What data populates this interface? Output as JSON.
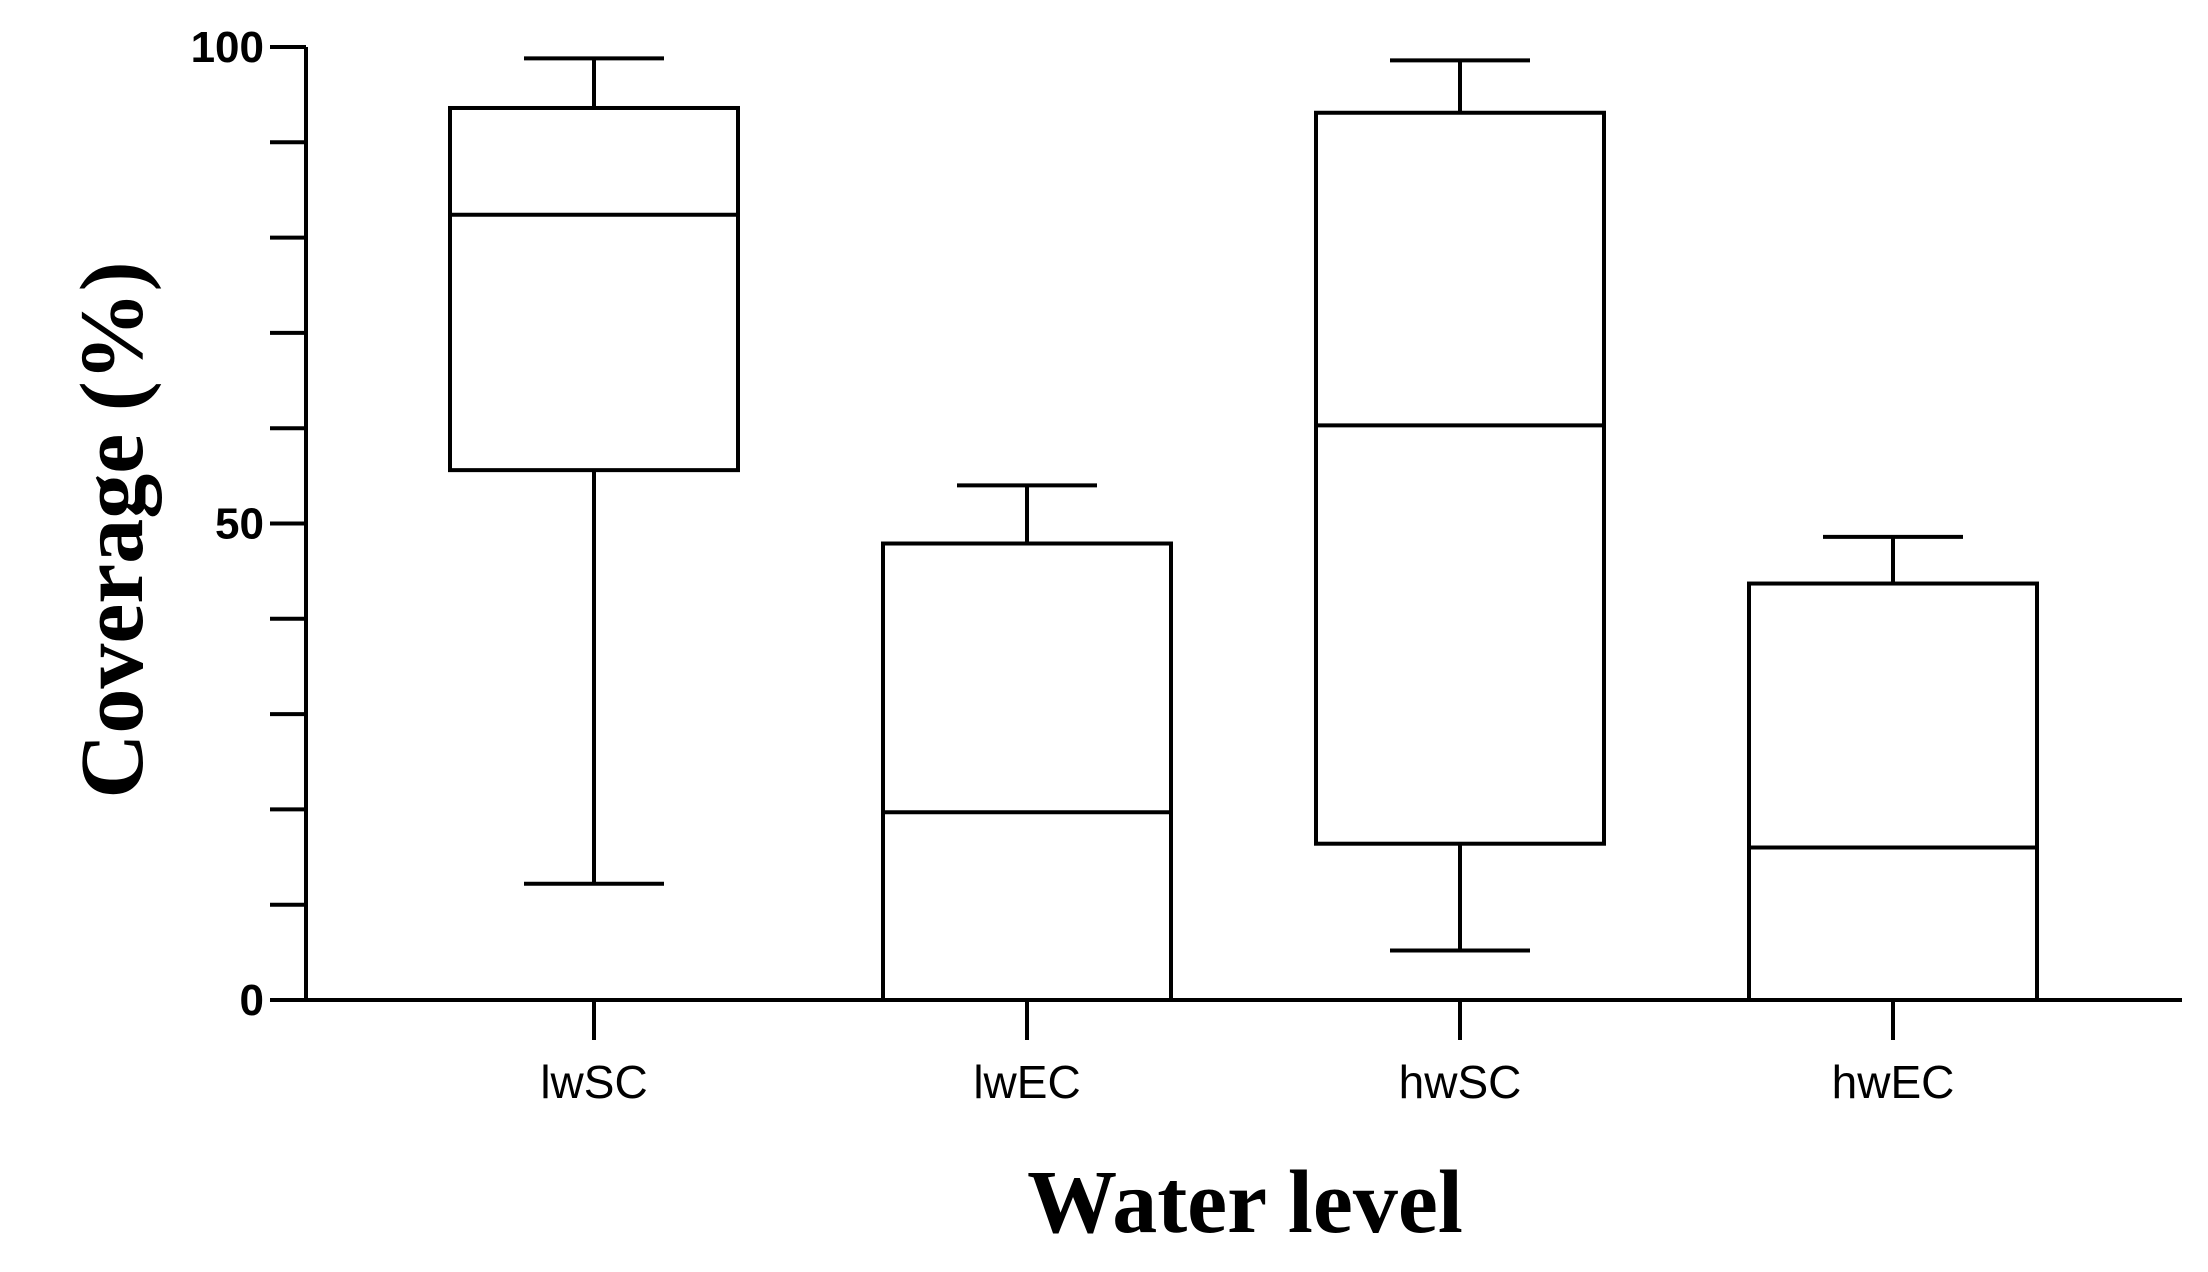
{
  "chart_data": {
    "type": "box",
    "title": "",
    "xlabel": "Water level",
    "ylabel": "Coverage (%)",
    "ylim": [
      0,
      100
    ],
    "yticks_labeled": [
      0,
      50,
      100
    ],
    "yticks_minor_step": 10,
    "grid": false,
    "legend": "none",
    "categories": [
      "lwSC",
      "lwEC",
      "hwSC",
      "hwEC"
    ],
    "boxes": [
      {
        "category": "lwSC",
        "min": 12.2,
        "q1": 55.6,
        "median": 82.4,
        "q3": 93.6,
        "max": 98.8
      },
      {
        "category": "lwEC",
        "min": 0,
        "q1": 0,
        "median": 19.7,
        "q3": 47.9,
        "max": 54.0
      },
      {
        "category": "hwSC",
        "min": 5.2,
        "q1": 16.4,
        "median": 60.3,
        "q3": 93.1,
        "max": 98.6
      },
      {
        "category": "hwEC",
        "min": 0,
        "q1": 0,
        "median": 16.0,
        "q3": 43.7,
        "max": 48.6
      }
    ],
    "colors": {
      "stroke": "#000000",
      "fill": "#ffffff"
    }
  }
}
